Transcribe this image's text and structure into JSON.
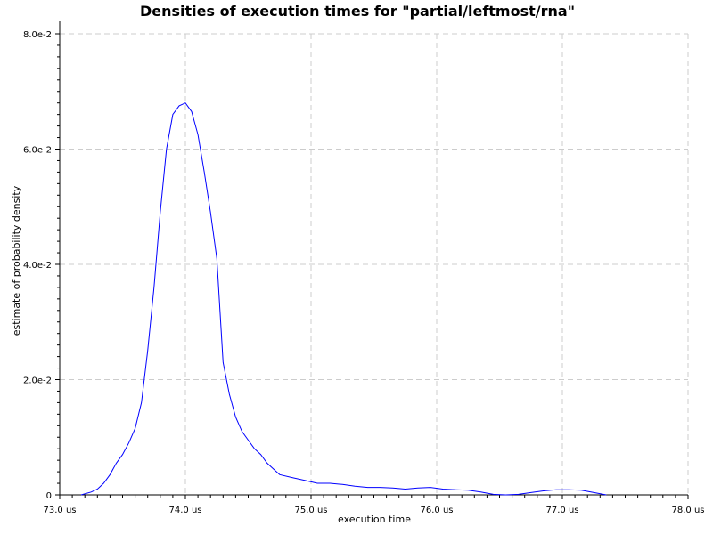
{
  "chart_data": {
    "type": "line",
    "title": "Densities of execution times for \"partial/leftmost/rna\"",
    "xlabel": "execution time",
    "ylabel": "estimate of probability density",
    "xlim": [
      73.0,
      78.0
    ],
    "ylim": [
      0,
      0.08
    ],
    "x_ticks": [
      {
        "value": 73.0,
        "label": "73.0 us"
      },
      {
        "value": 74.0,
        "label": "74.0 us"
      },
      {
        "value": 75.0,
        "label": "75.0 us"
      },
      {
        "value": 76.0,
        "label": "76.0 us"
      },
      {
        "value": 77.0,
        "label": "77.0 us"
      },
      {
        "value": 78.0,
        "label": "78.0 us"
      }
    ],
    "y_ticks": [
      {
        "value": 0,
        "label": "0"
      },
      {
        "value": 0.02,
        "label": "2.0e-2"
      },
      {
        "value": 0.04,
        "label": "4.0e-2"
      },
      {
        "value": 0.06,
        "label": "6.0e-2"
      },
      {
        "value": 0.08,
        "label": "8.0e-2"
      }
    ],
    "grid": true,
    "series": [
      {
        "color": "#0000ff",
        "points": [
          [
            73.17,
            0.0
          ],
          [
            73.25,
            0.0005
          ],
          [
            73.3,
            0.001
          ],
          [
            73.35,
            0.002
          ],
          [
            73.4,
            0.0035
          ],
          [
            73.45,
            0.0055
          ],
          [
            73.5,
            0.007
          ],
          [
            73.55,
            0.009
          ],
          [
            73.6,
            0.0115
          ],
          [
            73.65,
            0.016
          ],
          [
            73.7,
            0.025
          ],
          [
            73.75,
            0.036
          ],
          [
            73.8,
            0.049
          ],
          [
            73.85,
            0.06
          ],
          [
            73.9,
            0.066
          ],
          [
            73.95,
            0.0675
          ],
          [
            74.0,
            0.068
          ],
          [
            74.05,
            0.0665
          ],
          [
            74.1,
            0.0625
          ],
          [
            74.15,
            0.056
          ],
          [
            74.2,
            0.049
          ],
          [
            74.25,
            0.041
          ],
          [
            74.3,
            0.023
          ],
          [
            74.35,
            0.0175
          ],
          [
            74.4,
            0.0135
          ],
          [
            74.45,
            0.011
          ],
          [
            74.5,
            0.0095
          ],
          [
            74.55,
            0.008
          ],
          [
            74.6,
            0.007
          ],
          [
            74.65,
            0.0055
          ],
          [
            74.7,
            0.0045
          ],
          [
            74.75,
            0.0035
          ],
          [
            74.85,
            0.003
          ],
          [
            74.95,
            0.0025
          ],
          [
            75.05,
            0.002
          ],
          [
            75.15,
            0.002
          ],
          [
            75.25,
            0.0018
          ],
          [
            75.35,
            0.0015
          ],
          [
            75.45,
            0.0013
          ],
          [
            75.55,
            0.0013
          ],
          [
            75.65,
            0.0012
          ],
          [
            75.75,
            0.001
          ],
          [
            75.85,
            0.0012
          ],
          [
            75.95,
            0.0013
          ],
          [
            76.05,
            0.001
          ],
          [
            76.15,
            0.0009
          ],
          [
            76.25,
            0.0008
          ],
          [
            76.35,
            0.0005
          ],
          [
            76.45,
            0.0001
          ],
          [
            76.55,
            0.0
          ],
          [
            76.65,
            0.0001
          ],
          [
            76.75,
            0.0004
          ],
          [
            76.85,
            0.0007
          ],
          [
            76.95,
            0.0009
          ],
          [
            77.05,
            0.0009
          ],
          [
            77.15,
            0.0008
          ],
          [
            77.25,
            0.0004
          ],
          [
            77.35,
            0.0
          ]
        ]
      }
    ]
  }
}
